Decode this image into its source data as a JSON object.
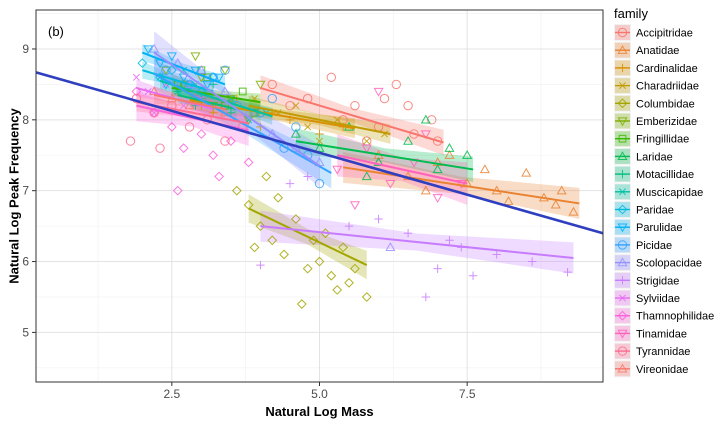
{
  "chart_data": {
    "type": "scatter",
    "panel_label": "(b)",
    "xlabel": "Natural Log Mass",
    "ylabel": "Natural Log Peak Frequency",
    "xlim": [
      0.2,
      9.8
    ],
    "ylim": [
      4.3,
      9.55
    ],
    "xticks": [
      2.5,
      5.0,
      7.5
    ],
    "xtick_labels": [
      "2.5",
      "5.0",
      "7.5"
    ],
    "yticks": [
      5,
      6,
      7,
      8,
      9
    ],
    "ytick_labels": [
      "5",
      "6",
      "7",
      "8",
      "9"
    ],
    "grid": true,
    "legend": {
      "title": "family",
      "placement": "right"
    },
    "overall_fit": {
      "color": "#2f3fbf",
      "x0": 0.2,
      "y0": 8.67,
      "x1": 9.8,
      "y1": 6.4
    },
    "series": [
      {
        "name": "Accipitridae",
        "shape": "circle",
        "color": "#F8766D",
        "fit": [
          4.0,
          8.45,
          7.1,
          7.68
        ],
        "band": 0.18,
        "points": [
          [
            4.2,
            8.5
          ],
          [
            4.8,
            8.3
          ],
          [
            5.2,
            8.6
          ],
          [
            5.6,
            8.2
          ],
          [
            6.0,
            7.9
          ],
          [
            6.3,
            8.5
          ],
          [
            6.6,
            7.8
          ],
          [
            6.9,
            8.0
          ],
          [
            7.0,
            7.7
          ],
          [
            5.4,
            8.0
          ],
          [
            4.5,
            8.2
          ],
          [
            6.1,
            8.3
          ],
          [
            5.8,
            7.7
          ],
          [
            6.5,
            8.2
          ]
        ]
      },
      {
        "name": "Anatidae",
        "shape": "triangle",
        "color": "#EA8331",
        "fit": [
          5.4,
          7.33,
          9.4,
          6.82
        ],
        "band": 0.22,
        "points": [
          [
            6.0,
            7.5
          ],
          [
            6.5,
            7.2
          ],
          [
            7.0,
            7.4
          ],
          [
            7.5,
            7.1
          ],
          [
            8.0,
            7.0
          ],
          [
            8.5,
            7.25
          ],
          [
            8.8,
            6.9
          ],
          [
            9.0,
            6.8
          ],
          [
            9.3,
            6.7
          ],
          [
            7.8,
            7.3
          ],
          [
            6.8,
            7.0
          ],
          [
            8.2,
            6.85
          ],
          [
            7.2,
            7.5
          ],
          [
            9.1,
            7.0
          ]
        ]
      },
      {
        "name": "Cardinalidae",
        "shape": "plus",
        "color": "#D89000",
        "fit": [
          2.8,
          8.28,
          5.6,
          7.88
        ],
        "band": 0.14,
        "points": [
          [
            2.8,
            8.4
          ],
          [
            3.2,
            8.1
          ],
          [
            3.6,
            8.3
          ],
          [
            4.0,
            7.9
          ],
          [
            4.5,
            8.0
          ],
          [
            5.0,
            7.8
          ],
          [
            5.4,
            7.9
          ],
          [
            3.0,
            8.2
          ],
          [
            4.2,
            8.1
          ]
        ]
      },
      {
        "name": "Charadriidae",
        "shape": "x",
        "color": "#C09B00",
        "fit": [
          3.8,
          8.2,
          6.2,
          7.8
        ],
        "band": 0.14,
        "points": [
          [
            3.9,
            8.3
          ],
          [
            4.3,
            8.1
          ],
          [
            4.8,
            7.9
          ],
          [
            5.3,
            8.0
          ],
          [
            5.8,
            7.7
          ],
          [
            6.1,
            7.8
          ],
          [
            4.6,
            8.2
          ],
          [
            5.0,
            7.7
          ]
        ]
      },
      {
        "name": "Columbidae",
        "shape": "diamond",
        "color": "#A3A500",
        "fit": [
          3.8,
          6.75,
          5.8,
          5.95
        ],
        "band": 0.2,
        "points": [
          [
            3.6,
            7.0
          ],
          [
            3.8,
            6.8
          ],
          [
            4.0,
            6.5
          ],
          [
            4.2,
            6.3
          ],
          [
            4.4,
            6.1
          ],
          [
            4.6,
            6.6
          ],
          [
            4.8,
            5.9
          ],
          [
            5.0,
            6.0
          ],
          [
            5.2,
            5.8
          ],
          [
            5.4,
            6.2
          ],
          [
            5.6,
            5.9
          ],
          [
            5.8,
            5.5
          ],
          [
            4.3,
            6.9
          ],
          [
            4.7,
            5.4
          ],
          [
            5.1,
            6.4
          ],
          [
            5.5,
            5.7
          ],
          [
            3.9,
            6.2
          ],
          [
            4.9,
            6.3
          ],
          [
            5.3,
            5.6
          ],
          [
            4.1,
            7.2
          ]
        ]
      },
      {
        "name": "Emberizidae",
        "shape": "triangle-down",
        "color": "#7CAE00",
        "fit": [
          2.5,
          8.5,
          4.0,
          8.1
        ],
        "band": 0.15,
        "points": [
          [
            2.4,
            8.7
          ],
          [
            2.7,
            8.5
          ],
          [
            3.0,
            8.6
          ],
          [
            3.2,
            8.2
          ],
          [
            3.5,
            8.3
          ],
          [
            3.8,
            8.0
          ],
          [
            4.0,
            8.5
          ],
          [
            2.9,
            8.9
          ],
          [
            3.4,
            8.7
          ]
        ]
      },
      {
        "name": "Fringillidae",
        "shape": "square",
        "color": "#39B600",
        "fit": [
          2.5,
          8.45,
          4.0,
          8.25
        ],
        "band": 0.12,
        "points": [
          [
            2.6,
            8.5
          ],
          [
            2.9,
            8.3
          ],
          [
            3.1,
            8.6
          ],
          [
            3.4,
            8.2
          ],
          [
            3.7,
            8.4
          ],
          [
            3.9,
            8.1
          ],
          [
            3.0,
            8.7
          ]
        ]
      },
      {
        "name": "Laridae",
        "shape": "triangle",
        "color": "#00BB4E",
        "fit": [
          4.6,
          7.7,
          7.6,
          7.3
        ],
        "band": 0.18,
        "points": [
          [
            4.6,
            7.8
          ],
          [
            5.0,
            7.6
          ],
          [
            5.5,
            7.9
          ],
          [
            6.0,
            7.4
          ],
          [
            6.5,
            7.7
          ],
          [
            7.0,
            7.3
          ],
          [
            7.5,
            7.5
          ],
          [
            6.8,
            8.0
          ],
          [
            5.8,
            7.2
          ],
          [
            7.2,
            7.6
          ]
        ]
      },
      {
        "name": "Motacillidae",
        "shape": "plus",
        "color": "#00BF7D",
        "fit": [
          2.6,
          8.35,
          3.6,
          8.15
        ],
        "band": 0.12,
        "points": [
          [
            2.6,
            8.4
          ],
          [
            2.9,
            8.2
          ],
          [
            3.2,
            8.5
          ],
          [
            3.5,
            8.1
          ],
          [
            3.0,
            8.3
          ]
        ]
      },
      {
        "name": "Muscicapidae",
        "shape": "x",
        "color": "#00C1A3",
        "fit": [
          2.3,
          8.55,
          4.2,
          8.05
        ],
        "band": 0.12,
        "points": [
          [
            2.3,
            8.6
          ],
          [
            2.6,
            8.4
          ],
          [
            2.9,
            8.5
          ],
          [
            3.2,
            8.2
          ],
          [
            3.5,
            8.3
          ],
          [
            3.8,
            8.0
          ],
          [
            4.1,
            8.1
          ],
          [
            2.7,
            8.7
          ]
        ]
      },
      {
        "name": "Paridae",
        "shape": "diamond",
        "color": "#00BAE0",
        "fit": [
          2.0,
          8.7,
          3.2,
          8.4
        ],
        "band": 0.12,
        "points": [
          [
            2.0,
            8.8
          ],
          [
            2.3,
            8.6
          ],
          [
            2.5,
            8.7
          ],
          [
            2.8,
            8.5
          ],
          [
            3.0,
            8.4
          ],
          [
            3.2,
            8.6
          ]
        ]
      },
      {
        "name": "Parulidae",
        "shape": "triangle-down",
        "color": "#00B0F6",
        "fit": [
          2.0,
          8.95,
          3.4,
          8.5
        ],
        "band": 0.12,
        "points": [
          [
            2.1,
            9.0
          ],
          [
            2.3,
            8.8
          ],
          [
            2.5,
            8.9
          ],
          [
            2.7,
            8.6
          ],
          [
            2.9,
            8.7
          ],
          [
            3.1,
            8.5
          ],
          [
            3.3,
            8.6
          ],
          [
            2.4,
            8.5
          ]
        ]
      },
      {
        "name": "Picidae",
        "shape": "circle",
        "color": "#35A2FF",
        "fit": [
          2.2,
          8.65,
          5.2,
          7.25
        ],
        "band": 0.22,
        "points": [
          [
            2.4,
            8.7
          ],
          [
            2.8,
            8.5
          ],
          [
            3.2,
            8.6
          ],
          [
            3.6,
            8.2
          ],
          [
            4.0,
            8.1
          ],
          [
            4.4,
            7.6
          ],
          [
            4.8,
            7.5
          ],
          [
            5.0,
            7.1
          ],
          [
            3.0,
            8.3
          ],
          [
            4.2,
            8.3
          ],
          [
            4.6,
            7.9
          ],
          [
            3.4,
            8.7
          ]
        ]
      },
      {
        "name": "Scolopacidae",
        "shape": "triangle",
        "color": "#9590FF",
        "fit": [
          2.2,
          8.95,
          5.0,
          7.35
        ],
        "band": 0.3,
        "points": [
          [
            2.2,
            9.0
          ],
          [
            2.6,
            8.8
          ],
          [
            3.0,
            8.7
          ],
          [
            3.4,
            8.4
          ],
          [
            3.8,
            8.1
          ],
          [
            4.2,
            7.8
          ],
          [
            4.6,
            7.6
          ],
          [
            5.0,
            7.4
          ],
          [
            6.2,
            6.2
          ],
          [
            2.8,
            8.5
          ]
        ]
      },
      {
        "name": "Strigidae",
        "shape": "plus",
        "color": "#C77CFF",
        "fit": [
          4.0,
          6.5,
          9.3,
          6.05
        ],
        "band": 0.22,
        "points": [
          [
            4.0,
            5.95
          ],
          [
            4.5,
            7.1
          ],
          [
            4.8,
            7.2
          ],
          [
            5.5,
            6.5
          ],
          [
            6.0,
            6.6
          ],
          [
            6.5,
            6.4
          ],
          [
            7.0,
            5.9
          ],
          [
            7.2,
            6.3
          ],
          [
            7.6,
            5.8
          ],
          [
            8.0,
            6.1
          ],
          [
            8.6,
            6.0
          ],
          [
            9.2,
            5.85
          ],
          [
            6.8,
            5.5
          ],
          [
            7.4,
            6.2
          ]
        ]
      },
      {
        "name": "Sylviidae",
        "shape": "x",
        "color": "#E76BF3",
        "fit": [
          1.9,
          8.45,
          3.2,
          8.15
        ],
        "band": 0.12,
        "points": [
          [
            1.9,
            8.6
          ],
          [
            2.1,
            8.4
          ],
          [
            2.4,
            8.5
          ],
          [
            2.7,
            8.2
          ],
          [
            3.0,
            8.3
          ],
          [
            2.2,
            8.1
          ]
        ]
      },
      {
        "name": "Thamnophilidae",
        "shape": "diamond",
        "color": "#FA62DB",
        "fit": [
          1.9,
          8.2,
          3.8,
          7.85
        ],
        "band": 0.22,
        "points": [
          [
            1.9,
            8.4
          ],
          [
            2.2,
            8.1
          ],
          [
            2.5,
            7.9
          ],
          [
            2.7,
            7.6
          ],
          [
            3.0,
            7.8
          ],
          [
            3.2,
            7.5
          ],
          [
            3.5,
            7.7
          ],
          [
            3.8,
            7.4
          ],
          [
            2.6,
            7.0
          ],
          [
            2.9,
            8.3
          ],
          [
            3.3,
            7.2
          ]
        ]
      },
      {
        "name": "Tinamidae",
        "shape": "triangle-down",
        "color": "#FF62BC",
        "fit": [
          5.3,
          7.5,
          7.5,
          7.1
        ],
        "band": 0.3,
        "points": [
          [
            5.3,
            7.3
          ],
          [
            5.8,
            7.6
          ],
          [
            6.2,
            7.1
          ],
          [
            6.6,
            7.4
          ],
          [
            7.0,
            6.9
          ],
          [
            7.4,
            7.1
          ],
          [
            6.0,
            8.4
          ],
          [
            6.8,
            7.8
          ],
          [
            5.6,
            6.8
          ]
        ]
      },
      {
        "name": "Tyrannidae",
        "shape": "circle",
        "color": "#FF6C91",
        "fit": [
          1.9,
          8.25,
          3.8,
          7.95
        ],
        "band": 0.13,
        "points": [
          [
            1.9,
            8.3
          ],
          [
            2.2,
            8.1
          ],
          [
            2.5,
            8.2
          ],
          [
            2.8,
            7.9
          ],
          [
            3.1,
            8.0
          ],
          [
            3.4,
            7.7
          ],
          [
            3.7,
            7.9
          ],
          [
            2.3,
            7.6
          ],
          [
            1.8,
            7.7
          ]
        ]
      },
      {
        "name": "Vireonidae",
        "shape": "triangle",
        "color": "#F8766D",
        "fit": [
          2.2,
          8.35,
          3.4,
          8.15
        ],
        "band": 0.12,
        "points": [
          [
            2.2,
            8.4
          ],
          [
            2.5,
            8.3
          ],
          [
            2.8,
            8.2
          ],
          [
            3.1,
            8.3
          ],
          [
            3.4,
            8.1
          ]
        ]
      }
    ]
  }
}
